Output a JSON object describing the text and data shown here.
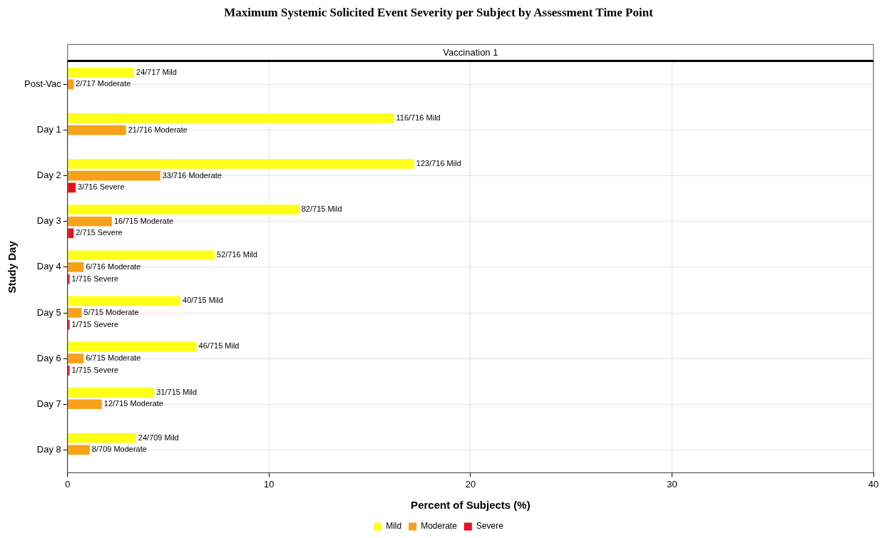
{
  "chart_data": {
    "type": "bar",
    "orientation": "horizontal",
    "title": "Maximum Systemic Solicited Event Severity per Subject by Assessment Time Point",
    "subtitle": "Vaccination 1",
    "xlabel": "Percent of Subjects (%)",
    "ylabel": "Study Day",
    "categories": [
      "Post-Vac",
      "Day 1",
      "Day 2",
      "Day 3",
      "Day 4",
      "Day 5",
      "Day 6",
      "Day 7",
      "Day 8"
    ],
    "series": [
      {
        "name": "Mild",
        "color": "#ffff1a",
        "values": [
          3.3,
          16.2,
          17.2,
          11.5,
          7.3,
          5.6,
          6.4,
          4.3,
          3.4
        ],
        "value_labels": [
          "24/717 Mild",
          "116/716 Mild",
          "123/716 Mild",
          "82/715 Mild",
          "52/716 Mild",
          "40/715 Mild",
          "46/715 Mild",
          "31/715 Mild",
          "24/709 Mild"
        ]
      },
      {
        "name": "Moderate",
        "color": "#f7a11a",
        "values": [
          0.3,
          2.9,
          4.6,
          2.2,
          0.8,
          0.7,
          0.8,
          1.7,
          1.1
        ],
        "value_labels": [
          "2/717 Moderate",
          "21/716 Moderate",
          "33/716 Moderate",
          "16/715 Moderate",
          "6/716 Moderate",
          "5/715 Moderate",
          "6/715 Moderate",
          "12/715 Moderate",
          "8/709 Moderate"
        ]
      },
      {
        "name": "Severe",
        "color": "#e8101a",
        "values": [
          null,
          null,
          0.4,
          0.3,
          0.1,
          0.1,
          0.1,
          null,
          null
        ],
        "value_labels": [
          null,
          null,
          "3/716 Severe",
          "2/715 Severe",
          "1/716 Severe",
          "1/715 Severe",
          "1/715 Severe",
          null,
          null
        ]
      }
    ],
    "xlim": [
      0,
      40
    ],
    "xticks": [
      0,
      10,
      20,
      30,
      40
    ],
    "grid": true,
    "legend": "bottom"
  }
}
